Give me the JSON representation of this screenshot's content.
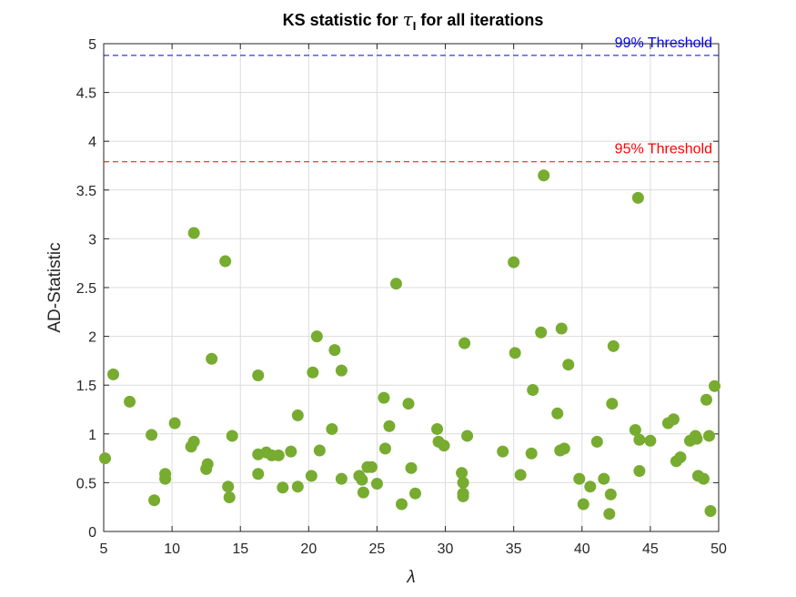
{
  "chart_data": {
    "type": "scatter",
    "title_main": "KS statistic for ",
    "title_symbol": "τ",
    "title_subscript": "I",
    "title_rest": " for all iterations",
    "xlabel": "λ",
    "ylabel": "AD-Statistic",
    "xlim": [
      5,
      50
    ],
    "ylim": [
      0,
      5
    ],
    "xticks": [
      5,
      10,
      15,
      20,
      25,
      30,
      35,
      40,
      45,
      50
    ],
    "yticks": [
      0,
      0.5,
      1,
      1.5,
      2,
      2.5,
      3,
      3.5,
      4,
      4.5,
      5
    ],
    "ytick_labels": [
      "0",
      "0.5",
      "1",
      "1.5",
      "2",
      "2.5",
      "3",
      "3.5",
      "4",
      "4.5",
      "5"
    ],
    "grid": true,
    "marker_color": "#77ac30",
    "thresholds": [
      {
        "label": "99% Threshold",
        "value": 4.88,
        "color": "#0000ff"
      },
      {
        "label": "95% Threshold",
        "value": 3.79,
        "color": "#ff0000"
      }
    ],
    "points": [
      [
        5.1,
        0.75
      ],
      [
        5.7,
        1.61
      ],
      [
        6.9,
        1.33
      ],
      [
        8.5,
        0.99
      ],
      [
        8.7,
        0.32
      ],
      [
        9.5,
        0.59
      ],
      [
        9.5,
        0.54
      ],
      [
        10.2,
        1.11
      ],
      [
        11.4,
        0.87
      ],
      [
        11.6,
        0.92
      ],
      [
        11.6,
        3.06
      ],
      [
        12.5,
        0.64
      ],
      [
        12.6,
        0.69
      ],
      [
        12.9,
        1.77
      ],
      [
        13.9,
        2.77
      ],
      [
        14.1,
        0.46
      ],
      [
        14.2,
        0.35
      ],
      [
        14.4,
        0.98
      ],
      [
        16.3,
        0.79
      ],
      [
        16.3,
        0.59
      ],
      [
        16.3,
        1.6
      ],
      [
        16.9,
        0.81
      ],
      [
        17.3,
        0.78
      ],
      [
        17.8,
        0.78
      ],
      [
        18.1,
        0.45
      ],
      [
        18.7,
        0.82
      ],
      [
        19.2,
        1.19
      ],
      [
        19.2,
        0.46
      ],
      [
        20.2,
        0.57
      ],
      [
        20.3,
        1.63
      ],
      [
        20.6,
        2.0
      ],
      [
        20.8,
        0.83
      ],
      [
        21.7,
        1.05
      ],
      [
        21.9,
        1.86
      ],
      [
        22.4,
        1.65
      ],
      [
        22.4,
        0.54
      ],
      [
        23.7,
        0.57
      ],
      [
        23.9,
        0.53
      ],
      [
        24.0,
        0.4
      ],
      [
        24.3,
        0.66
      ],
      [
        24.6,
        0.66
      ],
      [
        25.0,
        0.49
      ],
      [
        25.5,
        1.37
      ],
      [
        25.6,
        0.85
      ],
      [
        25.9,
        1.08
      ],
      [
        26.4,
        2.54
      ],
      [
        26.8,
        0.28
      ],
      [
        27.3,
        1.31
      ],
      [
        27.5,
        0.65
      ],
      [
        27.8,
        0.39
      ],
      [
        29.4,
        1.05
      ],
      [
        29.5,
        0.92
      ],
      [
        29.9,
        0.88
      ],
      [
        31.2,
        0.6
      ],
      [
        31.3,
        0.5
      ],
      [
        31.3,
        0.39
      ],
      [
        31.3,
        0.36
      ],
      [
        31.4,
        1.93
      ],
      [
        31.6,
        0.98
      ],
      [
        34.2,
        0.82
      ],
      [
        35.0,
        2.76
      ],
      [
        35.1,
        1.83
      ],
      [
        35.5,
        0.58
      ],
      [
        36.3,
        0.8
      ],
      [
        36.4,
        1.45
      ],
      [
        37.0,
        2.04
      ],
      [
        37.2,
        3.65
      ],
      [
        38.2,
        1.21
      ],
      [
        38.4,
        0.83
      ],
      [
        38.5,
        2.08
      ],
      [
        38.7,
        0.85
      ],
      [
        39.0,
        1.71
      ],
      [
        39.8,
        0.54
      ],
      [
        40.1,
        0.28
      ],
      [
        40.6,
        0.46
      ],
      [
        41.1,
        0.92
      ],
      [
        41.6,
        0.54
      ],
      [
        42.0,
        0.18
      ],
      [
        42.1,
        0.38
      ],
      [
        42.2,
        1.31
      ],
      [
        42.3,
        1.9
      ],
      [
        43.9,
        1.04
      ],
      [
        44.1,
        3.42
      ],
      [
        44.2,
        0.94
      ],
      [
        44.2,
        0.62
      ],
      [
        45.0,
        0.93
      ],
      [
        46.3,
        1.11
      ],
      [
        46.7,
        1.15
      ],
      [
        46.9,
        0.72
      ],
      [
        47.2,
        0.76
      ],
      [
        47.9,
        0.93
      ],
      [
        48.3,
        0.98
      ],
      [
        48.5,
        0.57
      ],
      [
        48.9,
        0.54
      ],
      [
        49.1,
        1.35
      ],
      [
        49.3,
        0.98
      ],
      [
        49.4,
        0.21
      ],
      [
        49.7,
        1.49
      ],
      [
        48.4,
        0.95
      ]
    ]
  }
}
